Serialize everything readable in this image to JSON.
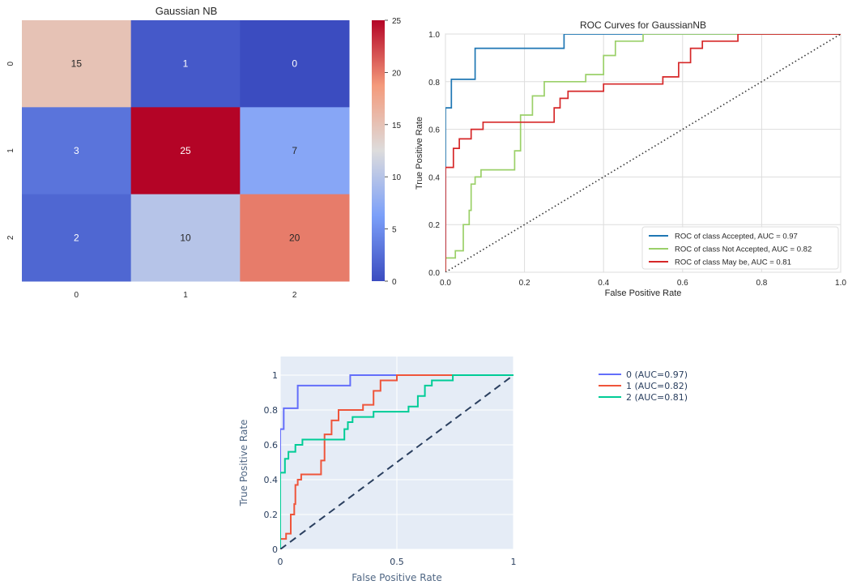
{
  "chart_data": [
    {
      "type": "heatmap",
      "title": "Gaussian NB",
      "x_tick_labels": [
        "0",
        "1",
        "2"
      ],
      "y_tick_labels": [
        "0",
        "1",
        "2"
      ],
      "values": [
        [
          15,
          1,
          0
        ],
        [
          3,
          25,
          7
        ],
        [
          2,
          10,
          20
        ]
      ],
      "colormap": "coolwarm",
      "vmin": 0,
      "vmax": 25,
      "colorbar_ticks": [
        0,
        5,
        10,
        15,
        20,
        25
      ]
    },
    {
      "type": "line",
      "title": "ROC Curves for GaussianNB",
      "xlabel": "False Positive Rate",
      "ylabel": "True Positive Rate",
      "xlim": [
        0,
        1
      ],
      "ylim": [
        0,
        1
      ],
      "x_ticks": [
        "0.0",
        "0.2",
        "0.4",
        "0.6",
        "0.8",
        "1.0"
      ],
      "y_ticks": [
        "0.0",
        "0.2",
        "0.4",
        "0.6",
        "0.8",
        "1.0"
      ],
      "grid": true,
      "legend_position": "bottom-right",
      "series": [
        {
          "name": "ROC of class Accepted, AUC = 0.97",
          "color": "#1f77b4",
          "x": [
            0,
            0,
            0.015,
            0.015,
            0.075,
            0.075,
            0.3,
            0.3,
            1
          ],
          "y": [
            0,
            0.69,
            0.69,
            0.81,
            0.81,
            0.94,
            0.94,
            1,
            1
          ]
        },
        {
          "name": "ROC of class Not Accepted, AUC = 0.82",
          "color": "#9bd069",
          "x": [
            0,
            0,
            0.025,
            0.025,
            0.045,
            0.045,
            0.06,
            0.06,
            0.065,
            0.065,
            0.075,
            0.075,
            0.09,
            0.09,
            0.175,
            0.175,
            0.19,
            0.19,
            0.22,
            0.22,
            0.25,
            0.25,
            0.355,
            0.355,
            0.4,
            0.4,
            0.43,
            0.43,
            0.5,
            0.5,
            1
          ],
          "y": [
            0,
            0.06,
            0.06,
            0.09,
            0.09,
            0.2,
            0.2,
            0.26,
            0.26,
            0.37,
            0.37,
            0.4,
            0.4,
            0.43,
            0.43,
            0.51,
            0.51,
            0.66,
            0.66,
            0.74,
            0.74,
            0.8,
            0.8,
            0.83,
            0.83,
            0.91,
            0.91,
            0.97,
            0.97,
            1,
            1
          ]
        },
        {
          "name": "ROC of class May be, AUC = 0.81",
          "color": "#d62728",
          "x": [
            0,
            0,
            0.02,
            0.02,
            0.035,
            0.035,
            0.065,
            0.065,
            0.095,
            0.095,
            0.275,
            0.275,
            0.29,
            0.29,
            0.31,
            0.31,
            0.4,
            0.4,
            0.55,
            0.55,
            0.59,
            0.59,
            0.62,
            0.62,
            0.65,
            0.65,
            0.74,
            0.74,
            1
          ],
          "y": [
            0,
            0.44,
            0.44,
            0.52,
            0.52,
            0.56,
            0.56,
            0.6,
            0.6,
            0.63,
            0.63,
            0.69,
            0.69,
            0.73,
            0.73,
            0.76,
            0.76,
            0.79,
            0.79,
            0.82,
            0.82,
            0.88,
            0.88,
            0.94,
            0.94,
            0.97,
            0.97,
            1,
            1
          ]
        },
        {
          "name": "",
          "color": "#333333",
          "dash": "dotted",
          "x": [
            0,
            1
          ],
          "y": [
            0,
            1
          ]
        }
      ]
    },
    {
      "type": "line",
      "title": "",
      "xlabel": "False Positive Rate",
      "ylabel": "True Positive Rate",
      "xlim": [
        0,
        1
      ],
      "ylim": [
        0,
        1
      ],
      "x_ticks": [
        "0",
        "0.5",
        "1"
      ],
      "y_ticks": [
        "0",
        "0.2",
        "0.4",
        "0.6",
        "0.8",
        "1"
      ],
      "grid": true,
      "legend_position": "right",
      "series": [
        {
          "name": "0 (AUC=0.97)",
          "color": "#636efa",
          "x": [
            0,
            0,
            0.015,
            0.015,
            0.075,
            0.075,
            0.3,
            0.3,
            1
          ],
          "y": [
            0,
            0.69,
            0.69,
            0.81,
            0.81,
            0.94,
            0.94,
            1,
            1
          ]
        },
        {
          "name": "1 (AUC=0.82)",
          "color": "#ef553b",
          "x": [
            0,
            0,
            0.025,
            0.025,
            0.045,
            0.045,
            0.06,
            0.06,
            0.065,
            0.065,
            0.075,
            0.075,
            0.09,
            0.09,
            0.175,
            0.175,
            0.19,
            0.19,
            0.22,
            0.22,
            0.25,
            0.25,
            0.355,
            0.355,
            0.4,
            0.4,
            0.43,
            0.43,
            0.5,
            0.5,
            1
          ],
          "y": [
            0,
            0.06,
            0.06,
            0.09,
            0.09,
            0.2,
            0.2,
            0.26,
            0.26,
            0.37,
            0.37,
            0.4,
            0.4,
            0.43,
            0.43,
            0.51,
            0.51,
            0.66,
            0.66,
            0.74,
            0.74,
            0.8,
            0.8,
            0.83,
            0.83,
            0.91,
            0.91,
            0.97,
            0.97,
            1,
            1
          ]
        },
        {
          "name": "2 (AUC=0.81)",
          "color": "#00cc96",
          "x": [
            0,
            0,
            0.02,
            0.02,
            0.035,
            0.035,
            0.065,
            0.065,
            0.095,
            0.095,
            0.275,
            0.275,
            0.29,
            0.29,
            0.31,
            0.31,
            0.4,
            0.4,
            0.55,
            0.55,
            0.59,
            0.59,
            0.62,
            0.62,
            0.65,
            0.65,
            0.74,
            0.74,
            1
          ],
          "y": [
            0,
            0.44,
            0.44,
            0.52,
            0.52,
            0.56,
            0.56,
            0.6,
            0.6,
            0.63,
            0.63,
            0.69,
            0.69,
            0.73,
            0.73,
            0.76,
            0.76,
            0.79,
            0.79,
            0.82,
            0.82,
            0.88,
            0.88,
            0.94,
            0.94,
            0.97,
            0.97,
            1,
            1
          ]
        },
        {
          "name": "",
          "color": "#2a3f5f",
          "dash": "dashed",
          "x": [
            0,
            1
          ],
          "y": [
            0,
            1
          ]
        }
      ]
    }
  ]
}
